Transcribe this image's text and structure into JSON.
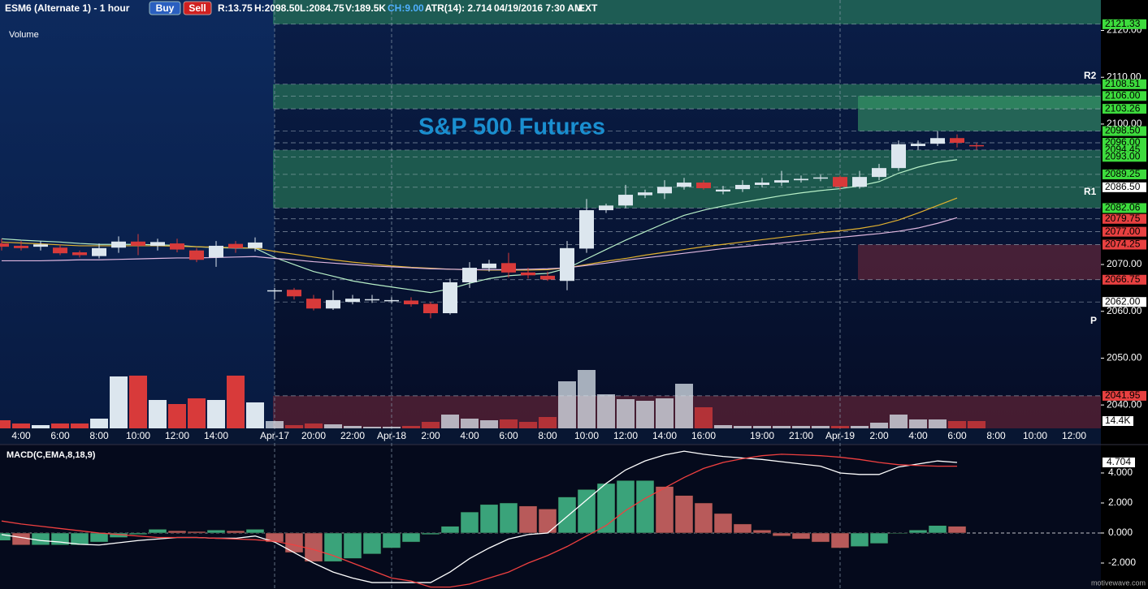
{
  "header": {
    "symbol": "ESM6 (Alternate 1) - 1 hour",
    "buy": "Buy",
    "sell": "Sell",
    "range": "R:13.75",
    "high": "H:2098.50",
    "low": "L:2084.75",
    "volume": "V:189.5K",
    "change": "CH:9.00",
    "atr": "ATR(14): 2.714",
    "datetime": "04/19/2016 7:30 AM",
    "session": "EXT"
  },
  "footer": "motivewave.com",
  "annotations": {
    "title": "S&P 500 Futures",
    "r2": "R2",
    "r1": "R1",
    "p": "P",
    "volume": "Volume"
  },
  "chart_data": [
    {
      "type": "candlestick",
      "categories": [
        null,
        "4:00",
        null,
        "6:00",
        null,
        "8:00",
        null,
        "10:00",
        null,
        "12:00",
        null,
        "14:00",
        null,
        null,
        "Apr-17",
        null,
        "20:00",
        null,
        "22:00",
        null,
        "Apr-18",
        null,
        "2:00",
        null,
        "4:00",
        null,
        "6:00",
        null,
        "8:00",
        null,
        "10:00",
        null,
        "12:00",
        null,
        "14:00",
        null,
        "16:00",
        null,
        null,
        "19:00",
        null,
        "21:00",
        null,
        "Apr-19",
        null,
        "2:00",
        null,
        "4:00",
        null,
        "6:00",
        null,
        "8:00",
        null,
        "10:00",
        null,
        "12:00"
      ],
      "open": [
        2074.5,
        2074,
        2073.8,
        2073.6,
        2072.6,
        2071.8,
        2073.6,
        2074.9,
        2074,
        2074.5,
        2073,
        2071.5,
        2074.4,
        2073.5,
        2064.3,
        2064.6,
        2062.7,
        2060.6,
        2062,
        2062.4,
        2062.3,
        2062.3,
        2061.6,
        2059.6,
        2066.2,
        2069.2,
        2070.3,
        2068.3,
        2067.6,
        2066.5,
        2073.4,
        2081.6,
        2082.6,
        2084.8,
        2085.2,
        2086.6,
        2087.5,
        2085.6,
        2086.1,
        2087,
        2087.5,
        2088,
        2088.4,
        2088.7,
        2086.6,
        2088.7,
        2090.6,
        2095.3,
        2095.8,
        2097,
        2095.5,
        null,
        null,
        null,
        null,
        null
      ],
      "high": [
        2075.5,
        2075,
        2075,
        2074.2,
        2073,
        2074.5,
        2076,
        2076.5,
        2075.5,
        2075.5,
        2073.5,
        2075,
        2075,
        2075.8,
        2065,
        2065,
        2063.5,
        2064.5,
        2063.5,
        2063.5,
        2063,
        2063,
        2062,
        2067,
        2070.5,
        2071,
        2072.5,
        2069.3,
        2068.5,
        2075,
        2084,
        2083,
        2087,
        2086,
        2088,
        2088.5,
        2088,
        2086.8,
        2088,
        2088.5,
        2090,
        2089,
        2089.2,
        2089,
        2090,
        2091.5,
        2096.5,
        2096.5,
        2098.5,
        2097.8,
        2096,
        null,
        null,
        null,
        null,
        null
      ],
      "low": [
        2073,
        2073,
        2073,
        2072,
        2071.5,
        2071.3,
        2072.5,
        2072,
        2073,
        2072.6,
        2070.5,
        2069.5,
        2072.5,
        2072.8,
        2062.5,
        2062.5,
        2060.2,
        2060.3,
        2061.5,
        2061.8,
        2061.8,
        2061,
        2058.5,
        2059.3,
        2065,
        2068.5,
        2067.2,
        2067,
        2066.5,
        2064.5,
        2072.5,
        2081,
        2082,
        2084.2,
        2084,
        2086,
        2086,
        2085,
        2085.5,
        2086.5,
        2086.8,
        2087.5,
        2087.8,
        2086,
        2086.2,
        2088,
        2090,
        2094.5,
        2095.3,
        2095,
        2094.5,
        null,
        null,
        null,
        null,
        null
      ],
      "close": [
        2073.8,
        2073.5,
        2074.3,
        2072.4,
        2072,
        2073.5,
        2074.9,
        2074,
        2074.8,
        2073.2,
        2071,
        2074,
        2073.5,
        2074.7,
        2064.5,
        2063.2,
        2060.6,
        2062.4,
        2062.7,
        2062.6,
        2062.4,
        2061.5,
        2059.6,
        2066.2,
        2069.3,
        2070.2,
        2068.3,
        2067.7,
        2066.8,
        2073.5,
        2081.6,
        2082.6,
        2084.9,
        2085.4,
        2086.6,
        2087.5,
        2086.3,
        2086,
        2087,
        2087.5,
        2088,
        2088.3,
        2088.6,
        2086.6,
        2088.7,
        2090.6,
        2095.7,
        2095.8,
        2097,
        2096,
        2095.3,
        null,
        null,
        null,
        null,
        null
      ],
      "up_color": "#dce6ee",
      "down_color": "#d83a3a",
      "volume": [
        16000,
        9600,
        6400,
        9600,
        9600,
        19200,
        102400,
        104000,
        56000,
        48000,
        59200,
        56000,
        104000,
        51200,
        14400,
        6400,
        9600,
        8000,
        4800,
        3200,
        3200,
        4800,
        12800,
        27200,
        19200,
        16000,
        17600,
        12800,
        22400,
        92800,
        115200,
        67200,
        57600,
        54400,
        59200,
        88000,
        41600,
        6400,
        4800,
        4800,
        4800,
        4800,
        4800,
        4800,
        4800,
        11200,
        27200,
        17600,
        17600,
        14400,
        14400,
        null,
        null,
        null,
        null,
        null
      ],
      "volume_lim": [
        0,
        120000
      ],
      "volume_label": {
        "value": 14400,
        "label": "14.4K"
      },
      "series": [
        {
          "color": "#b8f0c8",
          "values": [
            2075.5,
            2075.2,
            2075,
            2074.8,
            2074.5,
            2074.3,
            2074.3,
            2074.3,
            2074.2,
            2074.1,
            2073.8,
            2073.6,
            2073.5,
            2073.5,
            2071.5,
            2070,
            2068.5,
            2067.5,
            2066.5,
            2065.8,
            2065.2,
            2064.6,
            2064,
            2064.8,
            2066,
            2067,
            2067.6,
            2067.9,
            2068.1,
            2069.2,
            2071.2,
            2073.2,
            2075.2,
            2077,
            2078.8,
            2080.5,
            2081.6,
            2082.5,
            2083.3,
            2084,
            2084.7,
            2085.3,
            2085.8,
            2086.2,
            2086.8,
            2087.7,
            2089.5,
            2090.8,
            2091.8,
            2092.4,
            null,
            null,
            null,
            null,
            null,
            null
          ]
        },
        {
          "color": "#e0b030",
          "values": [
            2074.8,
            2074.6,
            2074.4,
            2074.2,
            2074,
            2074,
            2074,
            2074,
            2074,
            2073.9,
            2073.8,
            2073.7,
            2073.6,
            2073.5,
            2072.8,
            2072.2,
            2071.6,
            2071,
            2070.5,
            2070.1,
            2069.7,
            2069.4,
            2069.2,
            2069,
            2068.9,
            2068.8,
            2068.8,
            2068.8,
            2068.9,
            2069.3,
            2070,
            2070.7,
            2071.3,
            2072,
            2072.6,
            2073.2,
            2073.8,
            2074.3,
            2074.8,
            2075.3,
            2075.8,
            2076.3,
            2076.8,
            2077.2,
            2077.7,
            2078.4,
            2079.5,
            2081,
            2082.6,
            2084.2,
            null,
            null,
            null,
            null,
            null,
            null
          ]
        },
        {
          "color": "#e0b8e0",
          "values": [
            2070.8,
            2070.8,
            2070.8,
            2070.9,
            2071,
            2071,
            2071.1,
            2071.2,
            2071.3,
            2071.4,
            2071.4,
            2071.5,
            2071.6,
            2071.7,
            2071.3,
            2071,
            2070.6,
            2070.3,
            2070,
            2069.7,
            2069.5,
            2069.3,
            2069.1,
            2069,
            2068.9,
            2068.9,
            2068.9,
            2069,
            2069.1,
            2069.3,
            2069.8,
            2070.3,
            2070.9,
            2071.4,
            2071.9,
            2072.4,
            2072.9,
            2073.4,
            2073.8,
            2074.2,
            2074.6,
            2075,
            2075.4,
            2075.8,
            2076.2,
            2076.6,
            2077.1,
            2077.8,
            2078.8,
            2080,
            null,
            null,
            null,
            null,
            null,
            null
          ]
        }
      ],
      "ylim": [
        2035,
        2126.5
      ],
      "yticks": [
        {
          "value": 2120,
          "label": "2120.00"
        },
        {
          "value": 2110,
          "label": "2110.00"
        },
        {
          "value": 2100,
          "label": "2100.00"
        },
        {
          "value": 2070,
          "label": "2070.00"
        },
        {
          "value": 2060,
          "label": "2060.00"
        },
        {
          "value": 2050,
          "label": "2050.00"
        },
        {
          "value": 2040,
          "label": "2040.00"
        }
      ],
      "levels": [
        {
          "value": 2121.33,
          "label": "2121.33",
          "color": "#3ddc3d"
        },
        {
          "value": 2108.51,
          "label": "2108.51",
          "color": "#3ddc3d"
        },
        {
          "value": 2106,
          "label": "2106.00",
          "color": "#3ddc3d"
        },
        {
          "value": 2103.26,
          "label": "2103.26",
          "color": "#3ddc3d"
        },
        {
          "value": 2098.5,
          "label": "2098.50",
          "color": "#3ddc3d"
        },
        {
          "value": 2096,
          "label": "2096.00",
          "color": "#3ddc3d"
        },
        {
          "value": 2094.45,
          "label": "2094.45",
          "color": "#3ddc3d"
        },
        {
          "value": 2093,
          "label": "2093.00",
          "color": "#3ddc3d"
        },
        {
          "value": 2089.25,
          "label": "2089.25",
          "color": "#3ddc3d"
        },
        {
          "value": 2086.5,
          "label": "2086.50",
          "color": "#ffffff"
        },
        {
          "value": 2082.06,
          "label": "2082.06",
          "color": "#3ddc3d"
        },
        {
          "value": 2079.75,
          "label": "2079.75",
          "color": "#e84040"
        },
        {
          "value": 2077,
          "label": "2077.00",
          "color": "#e84040"
        },
        {
          "value": 2074.25,
          "label": "2074.25",
          "color": "#e84040"
        },
        {
          "value": 2066.75,
          "label": "2066.75",
          "color": "#e84040"
        },
        {
          "value": 2062,
          "label": "2062.00",
          "color": "#ffffff"
        },
        {
          "value": 2041.95,
          "label": "2041.95",
          "color": "#e84040"
        }
      ],
      "zones": [
        {
          "low": 2121.33,
          "high": 2126.5,
          "start": 14,
          "color": "#2f8f5f"
        },
        {
          "low": 2103.26,
          "high": 2108.51,
          "start": 14,
          "color": "#2f8f5f"
        },
        {
          "low": 2082.06,
          "high": 2094.45,
          "start": 14,
          "color": "#2f8f5f"
        },
        {
          "low": 2098.5,
          "high": 2106,
          "start": 44,
          "color": "#3aa36a"
        },
        {
          "low": 2066.75,
          "high": 2074.25,
          "start": 44,
          "color": "#7a2a3a"
        },
        {
          "low": 2035,
          "high": 2041.95,
          "start": 14,
          "color": "#7a2a3a"
        }
      ]
    },
    {
      "type": "macd",
      "title": "MACD(C,EMA,8,18,9)",
      "histogram": [
        -0.5,
        -0.8,
        -0.8,
        -0.8,
        -0.8,
        -0.6,
        -0.3,
        -0.1,
        0.25,
        0.15,
        0.1,
        0.2,
        0.15,
        0.25,
        -0.6,
        -1.3,
        -1.9,
        -1.9,
        -1.7,
        -1.4,
        -1.0,
        -0.6,
        -0.1,
        0.45,
        1.4,
        1.9,
        2.0,
        1.8,
        1.6,
        2.4,
        2.9,
        3.3,
        3.5,
        3.5,
        3.1,
        2.5,
        2.0,
        1.3,
        0.6,
        0.2,
        -0.2,
        -0.4,
        -0.6,
        -1.0,
        -0.9,
        -0.7,
        -0.05,
        0.2,
        0.5,
        0.45,
        null,
        null,
        null,
        null,
        null,
        null
      ],
      "rise_color": "#3aa37a",
      "fall_color": "#b85a5a",
      "series": [
        {
          "color": "#ffffff",
          "values": [
            -0.1,
            -0.3,
            -0.5,
            -0.6,
            -0.75,
            -0.8,
            -0.65,
            -0.5,
            -0.4,
            -0.3,
            -0.3,
            -0.35,
            -0.35,
            -0.2,
            -0.6,
            -1.3,
            -2.0,
            -2.6,
            -3.0,
            -3.3,
            -3.3,
            -3.3,
            -3.3,
            -2.6,
            -1.7,
            -1.0,
            -0.4,
            -0.1,
            0,
            1.1,
            2.2,
            3.3,
            4.2,
            4.8,
            5.2,
            5.45,
            5.25,
            5.1,
            5.0,
            4.9,
            4.75,
            4.6,
            4.45,
            4.0,
            3.9,
            3.9,
            4.4,
            4.6,
            4.8,
            4.7,
            null,
            null,
            null,
            null,
            null,
            null
          ]
        },
        {
          "color": "#f04040",
          "values": [
            0.8,
            0.6,
            0.45,
            0.3,
            0.15,
            0,
            -0.1,
            -0.2,
            -0.3,
            -0.3,
            -0.3,
            -0.35,
            -0.4,
            -0.45,
            -0.55,
            -0.8,
            -1.1,
            -1.5,
            -2.0,
            -2.5,
            -3.0,
            -3.2,
            -3.6,
            -3.6,
            -3.4,
            -3.0,
            -2.6,
            -2.0,
            -1.5,
            -0.9,
            -0.2,
            0.5,
            1.5,
            2.3,
            3.0,
            3.7,
            4.3,
            4.7,
            4.95,
            5.15,
            5.25,
            5.2,
            5.15,
            5.05,
            4.9,
            4.7,
            4.55,
            4.5,
            4.45,
            4.45,
            null,
            null,
            null,
            null,
            null,
            null
          ]
        }
      ],
      "ylim": [
        -3.73,
        5.89
      ],
      "yticks": [
        {
          "value": 4,
          "label": "4.000"
        },
        {
          "value": 2,
          "label": "2.000"
        },
        {
          "value": 0,
          "label": "0.000"
        },
        {
          "value": -2,
          "label": "-2.000"
        }
      ],
      "last_label": {
        "value": 4.704,
        "label": "4.704"
      }
    }
  ]
}
